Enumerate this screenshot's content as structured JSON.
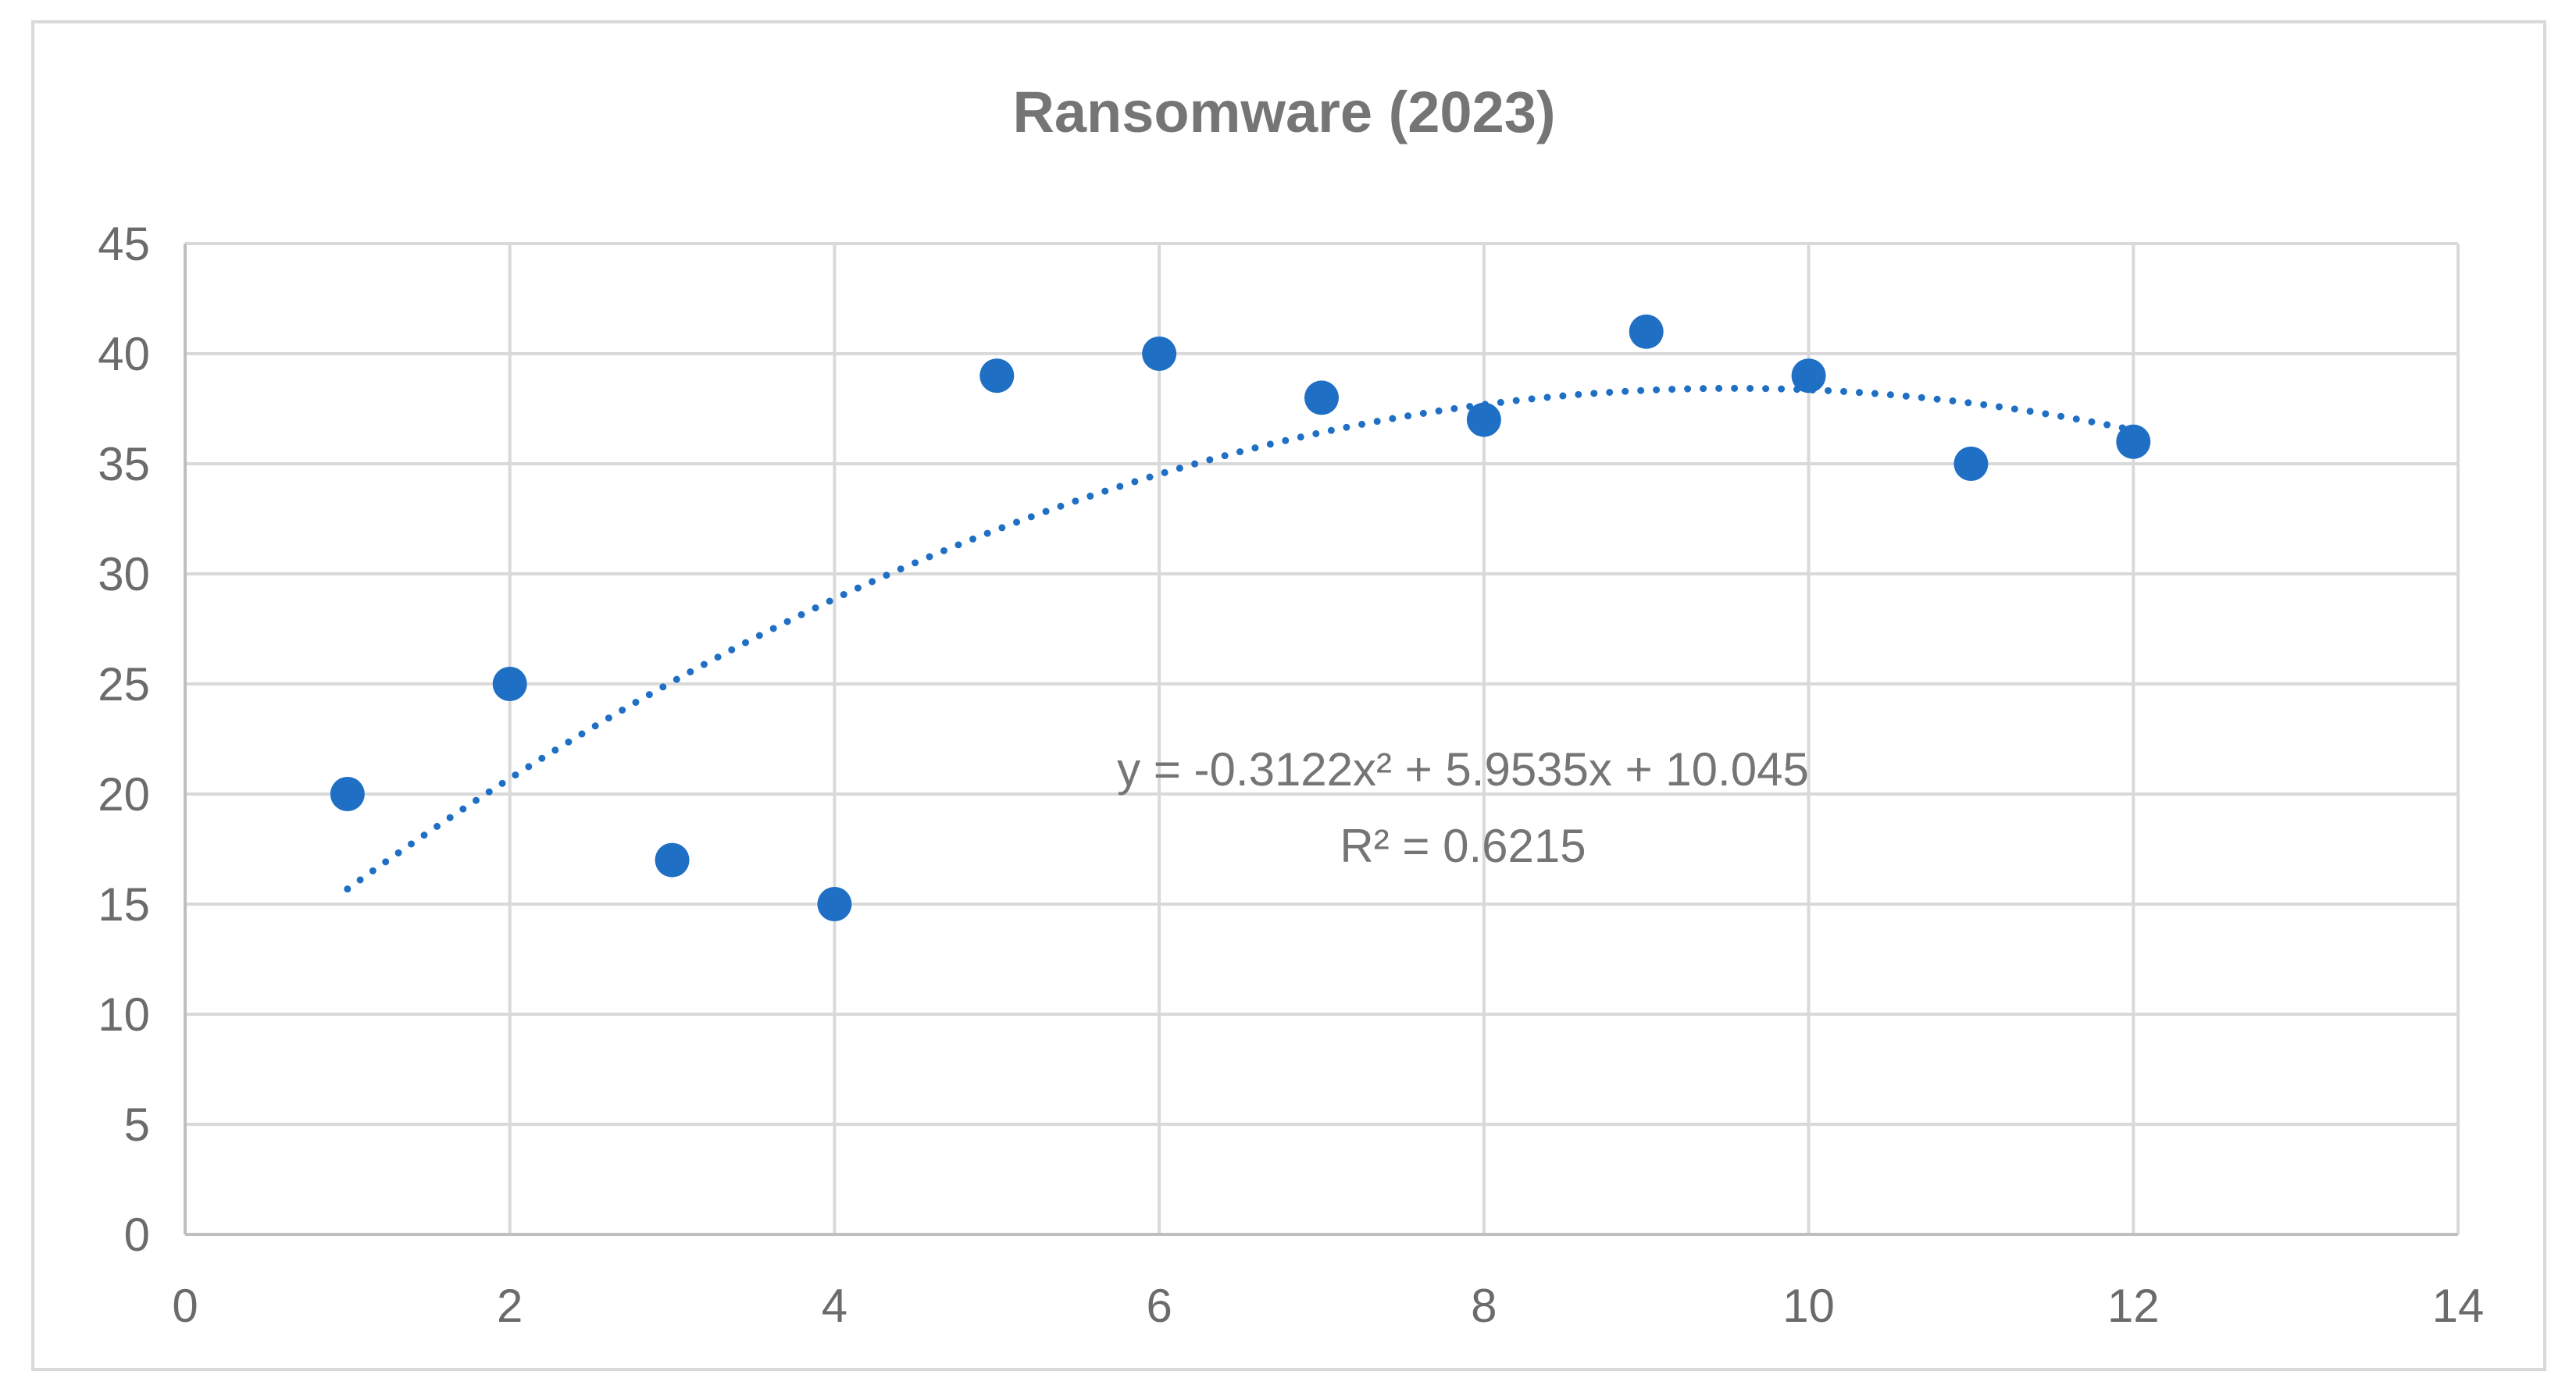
{
  "chart_data": {
    "type": "scatter",
    "title": "Ransomware (2023)",
    "xlabel": "",
    "ylabel": "",
    "xlim": [
      0,
      14
    ],
    "ylim": [
      0,
      45
    ],
    "x_ticks": [
      "0",
      "2",
      "4",
      "6",
      "8",
      "10",
      "12",
      "14"
    ],
    "y_ticks": [
      "0",
      "5",
      "10",
      "15",
      "20",
      "25",
      "30",
      "35",
      "40",
      "45"
    ],
    "grid": true,
    "legend": "none",
    "series": [
      {
        "x": [
          1,
          2,
          3,
          4,
          5,
          6,
          7,
          8,
          9,
          10,
          11,
          12
        ],
        "y": [
          20,
          25,
          17,
          15,
          39,
          40,
          38,
          37,
          41,
          39,
          35,
          36
        ],
        "color": "#1f6fc5",
        "marker": "circle"
      }
    ],
    "trendline": {
      "type": "polynomial",
      "order": 2,
      "coefficients": [
        -0.3122,
        5.9535,
        10.045
      ],
      "x_range": [
        1,
        12
      ],
      "style": "dotted",
      "color": "#1f6fc5",
      "equation_label": "y = -0.3122x² + 5.9535x + 10.045",
      "r2_label": "R² = 0.6215"
    }
  }
}
